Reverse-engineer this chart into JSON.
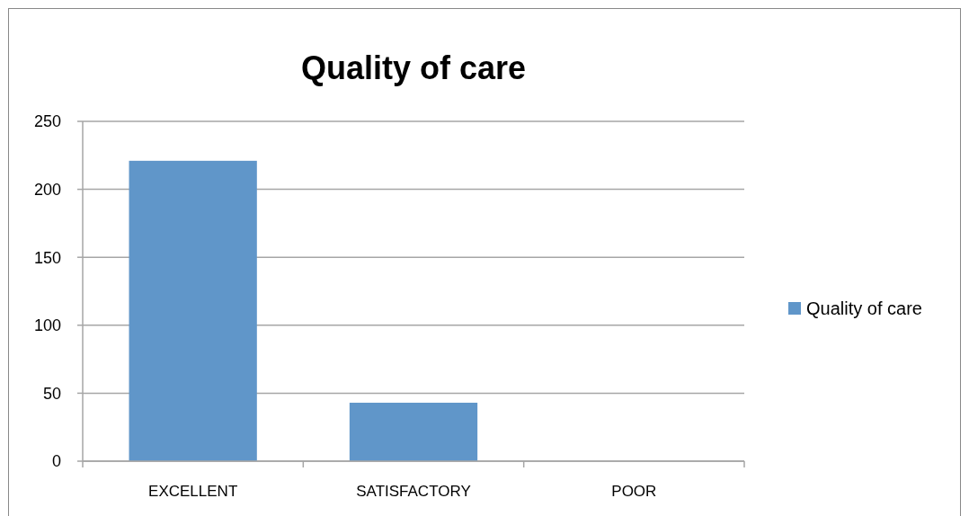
{
  "chart_data": {
    "type": "bar",
    "title": "Quality of care",
    "categories": [
      "EXCELLENT",
      "SATISFACTORY",
      "POOR"
    ],
    "series": [
      {
        "name": "Quality of care",
        "color": "#6096c9",
        "values": [
          221,
          43,
          0
        ]
      }
    ],
    "ylim": [
      0,
      250
    ],
    "yticks": [
      0,
      50,
      100,
      150,
      200,
      250
    ],
    "grid": "y",
    "legend": "right"
  }
}
